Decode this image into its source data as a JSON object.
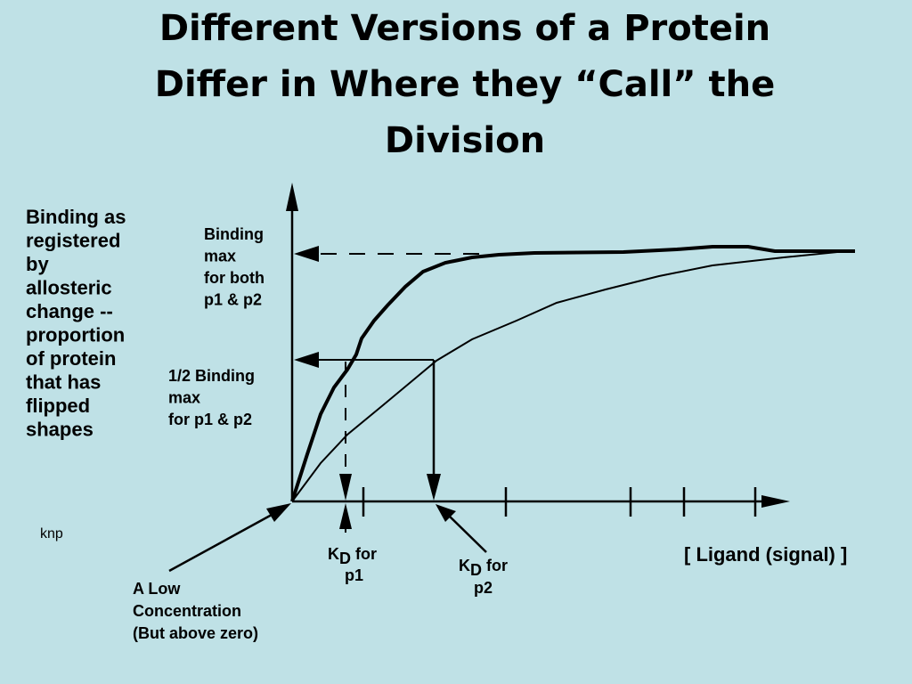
{
  "title": [
    "Different Versions of a Protein",
    "Differ in Where they “Call” the",
    "Division"
  ],
  "y_label": [
    "Binding as",
    "registered",
    "by",
    "allosteric",
    "change --",
    "proportion",
    "of protein",
    "that has",
    "flipped",
    "shapes"
  ],
  "binding_max": [
    "Binding",
    "max",
    "for both",
    "p1 & p2"
  ],
  "half_binding_max": [
    "1/2 Binding",
    "max",
    "for p1 & p2"
  ],
  "author": "knp",
  "kd_p1": {
    "symbol": "K",
    "subscript": "D",
    "text": "for",
    "line2": "p1"
  },
  "kd_p2": {
    "symbol": "K",
    "subscript": "D",
    "text": "for",
    "line2": "p2"
  },
  "x_label": "[ Ligand (signal) ]",
  "low_concentration": [
    "A Low",
    "Concentration",
    "(But above zero)"
  ]
}
